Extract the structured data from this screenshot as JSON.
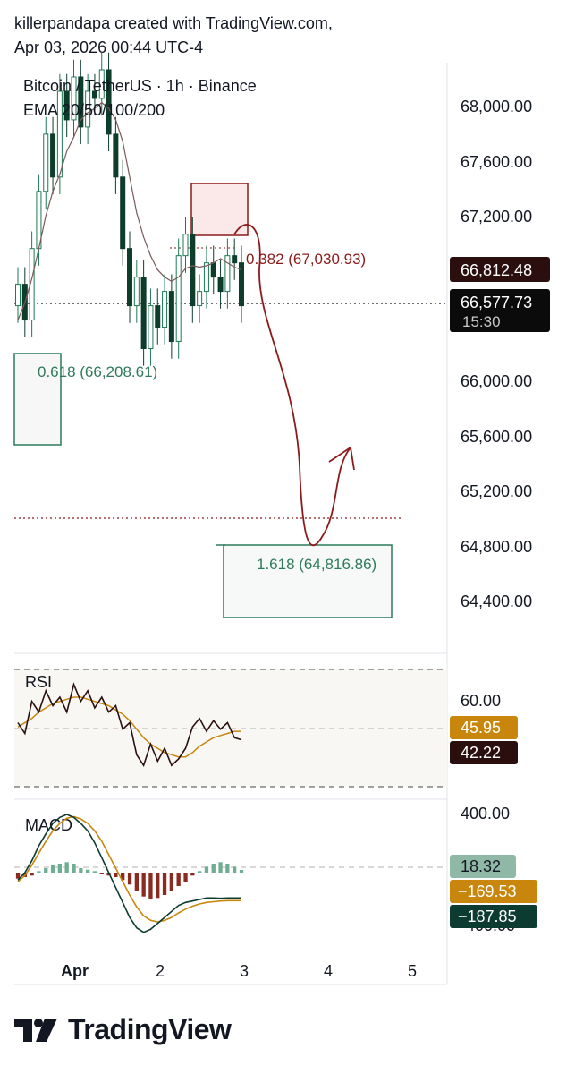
{
  "header": {
    "line1": "killerpandapa created with TradingView.com,",
    "line2": "Apr 03, 2026 00:44 UTC-4"
  },
  "legend": {
    "symbol": "Bitcoin / TetherUS · 1h · Binance",
    "indicator": "EMA 20/50/100/200"
  },
  "chart_data": [
    {
      "type": "candlestick",
      "title": "",
      "x_ticks": [
        "Apr",
        "2",
        "3",
        "4",
        "5"
      ],
      "y_ticks": [
        "68,000.00",
        "67,600.00",
        "67,200.00",
        "66,000.00",
        "65,600.00",
        "65,200.00",
        "64,800.00",
        "64,400.00"
      ],
      "ylim": [
        64200,
        68300
      ],
      "closes": [
        66750,
        66500,
        67000,
        67400,
        67800,
        67500,
        68100,
        67900,
        68200,
        67850,
        68100,
        68050,
        68250,
        67800,
        67500,
        67000,
        66600,
        66800,
        66300,
        66600,
        66450,
        66700,
        66350,
        66950,
        67100,
        66600,
        66700,
        66900,
        66800,
        66700,
        66950,
        66900,
        66600
      ],
      "ema": [
        66500,
        66620,
        66790,
        67000,
        67230,
        67400,
        67520,
        67680,
        67780,
        67900,
        67950,
        67980,
        68020,
        67980,
        67900,
        67750,
        67500,
        67250,
        67080,
        66950,
        66850,
        66800,
        66770,
        66800,
        66860,
        66880,
        66870,
        66880,
        66900,
        66930,
        66900,
        66870,
        66850
      ],
      "series": [
        {
          "name": "",
          "current_price": "66,577.73",
          "countdown": "15:30"
        }
      ],
      "price_labels": {
        "ema_value": "66,812.48"
      },
      "fib_levels": [
        {
          "label": "0.382 (67,030.93)",
          "price": 67030.93
        },
        {
          "label": "0.618 (66,208.61)",
          "price": 66208.61
        },
        {
          "label": "1.618 (64,816.86)",
          "price": 64816.86
        }
      ],
      "current_price_value": 66577.73,
      "target_dotted_price": 64990
    },
    {
      "type": "line",
      "title": "RSI",
      "y_ticks": [
        "60.00"
      ],
      "ylim": [
        20,
        75
      ],
      "rsi": [
        50,
        45,
        60,
        55,
        65,
        58,
        62,
        55,
        68,
        60,
        65,
        57,
        62,
        55,
        58,
        47,
        50,
        35,
        30,
        40,
        32,
        38,
        30,
        33,
        38,
        48,
        52,
        46,
        51,
        47,
        50,
        43,
        42
      ],
      "rsi_ma": [
        48,
        50,
        52,
        55,
        57,
        59,
        60,
        61,
        62,
        62,
        61,
        60,
        59,
        58,
        56,
        54,
        51,
        47,
        43,
        40,
        38,
        36,
        35,
        34,
        34,
        36,
        39,
        41,
        43,
        44,
        45,
        46,
        46
      ],
      "value_labels": [
        "45.95",
        "42.22"
      ]
    },
    {
      "type": "bar",
      "title": "MACD",
      "y_ticks": [
        "400.00",
        "-400.00"
      ],
      "ylim": [
        -450,
        450
      ],
      "histogram": [
        -40,
        -30,
        -20,
        10,
        30,
        50,
        60,
        70,
        60,
        30,
        20,
        10,
        -10,
        -20,
        -30,
        -50,
        -80,
        -120,
        -160,
        -180,
        -170,
        -150,
        -120,
        -90,
        -60,
        -20,
        10,
        40,
        60,
        70,
        60,
        40,
        18
      ],
      "macd": [
        -50,
        0,
        80,
        180,
        260,
        330,
        370,
        390,
        370,
        330,
        280,
        200,
        100,
        0,
        -100,
        -200,
        -300,
        -370,
        -400,
        -380,
        -340,
        -300,
        -260,
        -220,
        -200,
        -190,
        -180,
        -170,
        -170,
        -172,
        -170,
        -170,
        -170
      ],
      "signal": [
        -60,
        -20,
        50,
        130,
        210,
        280,
        330,
        365,
        375,
        360,
        330,
        280,
        210,
        120,
        30,
        -60,
        -150,
        -230,
        -290,
        -320,
        -330,
        -320,
        -300,
        -270,
        -245,
        -225,
        -210,
        -200,
        -195,
        -190,
        -188,
        -188,
        -188
      ],
      "value_labels": [
        "18.32",
        "−169.53",
        "−187.85"
      ]
    }
  ],
  "colors": {
    "up": "#1e7a55",
    "down": "#0e3d2c",
    "ema": "#7a5a5a",
    "fib_red": "#8b1a1a",
    "fib_green": "#2e7a5a",
    "rsi_line": "#2b1010",
    "rsi_ma": "#c8860d",
    "macd_line": "#0c3b31",
    "signal_line": "#c8860d"
  },
  "footer": {
    "brand": "TradingView"
  }
}
